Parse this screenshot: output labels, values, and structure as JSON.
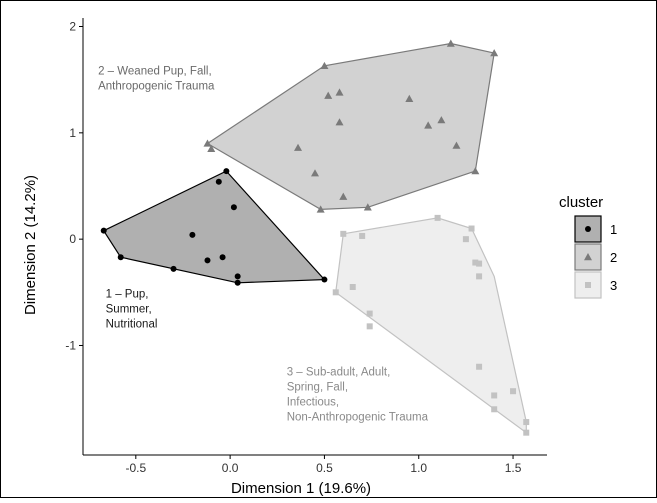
{
  "chart_data": {
    "type": "scatter",
    "xlabel": "Dimension 1 (19.6%)",
    "ylabel": "Dimension 2 (14.2%)",
    "xlim": [
      -0.78,
      1.68
    ],
    "ylim": [
      -2.03,
      2.08
    ],
    "x_ticks": [
      -0.5,
      0.0,
      0.5,
      1.0,
      1.5
    ],
    "x_tick_labels": [
      "-0.5",
      "0.0",
      "0.5",
      "1.0",
      "1.5"
    ],
    "y_ticks": [
      -1,
      0,
      1,
      2
    ],
    "y_tick_labels": [
      "-1",
      "0",
      "1",
      "2"
    ],
    "grid": false,
    "legend": {
      "title": "cluster",
      "position": "right",
      "items": [
        "1",
        "2",
        "3"
      ]
    },
    "series": [
      {
        "name": "1",
        "marker": "circle",
        "color": "#000000",
        "hull_fill": "#b0b0b0",
        "hull_stroke": "#000000",
        "points": [
          [
            -0.67,
            0.08
          ],
          [
            -0.58,
            -0.17
          ],
          [
            -0.3,
            -0.28
          ],
          [
            -0.2,
            0.04
          ],
          [
            -0.12,
            -0.2
          ],
          [
            -0.06,
            0.54
          ],
          [
            -0.04,
            -0.17
          ],
          [
            -0.02,
            0.64
          ],
          [
            0.02,
            0.3
          ],
          [
            0.04,
            -0.35
          ],
          [
            0.04,
            -0.41
          ],
          [
            0.5,
            -0.38
          ]
        ],
        "hull": [
          [
            -0.67,
            0.08
          ],
          [
            -0.02,
            0.64
          ],
          [
            0.5,
            -0.38
          ],
          [
            0.04,
            -0.41
          ],
          [
            -0.58,
            -0.17
          ]
        ]
      },
      {
        "name": "2",
        "marker": "triangle",
        "color": "#7a7a7a",
        "hull_fill": "#d2d2d2",
        "hull_stroke": "#7a7a7a",
        "points": [
          [
            -0.12,
            0.9
          ],
          [
            -0.1,
            0.85
          ],
          [
            0.36,
            0.86
          ],
          [
            0.45,
            0.62
          ],
          [
            0.48,
            0.28
          ],
          [
            0.5,
            1.63
          ],
          [
            0.52,
            1.35
          ],
          [
            0.58,
            1.38
          ],
          [
            0.58,
            1.1
          ],
          [
            0.6,
            0.4
          ],
          [
            0.73,
            0.3
          ],
          [
            0.95,
            1.32
          ],
          [
            1.05,
            1.07
          ],
          [
            1.12,
            1.12
          ],
          [
            1.17,
            1.84
          ],
          [
            1.2,
            0.88
          ],
          [
            1.3,
            0.64
          ],
          [
            1.4,
            1.75
          ]
        ],
        "hull": [
          [
            -0.12,
            0.9
          ],
          [
            0.5,
            1.63
          ],
          [
            1.17,
            1.84
          ],
          [
            1.4,
            1.75
          ],
          [
            1.3,
            0.64
          ],
          [
            0.73,
            0.3
          ],
          [
            0.48,
            0.28
          ]
        ]
      },
      {
        "name": "3",
        "marker": "square",
        "color": "#c2c2c2",
        "hull_fill": "#eeeeee",
        "hull_stroke": "#c2c2c2",
        "points": [
          [
            0.56,
            -0.5
          ],
          [
            0.6,
            0.05
          ],
          [
            0.65,
            -0.45
          ],
          [
            0.7,
            0.03
          ],
          [
            0.74,
            -0.7
          ],
          [
            0.74,
            -0.82
          ],
          [
            1.1,
            0.2
          ],
          [
            1.25,
            0.0
          ],
          [
            1.28,
            0.1
          ],
          [
            1.3,
            -0.22
          ],
          [
            1.32,
            -0.23
          ],
          [
            1.32,
            -0.35
          ],
          [
            1.32,
            -1.2
          ],
          [
            1.4,
            -1.47
          ],
          [
            1.4,
            -1.6
          ],
          [
            1.5,
            -1.43
          ],
          [
            1.57,
            -1.72
          ],
          [
            1.57,
            -1.82
          ]
        ],
        "hull": [
          [
            0.6,
            0.05
          ],
          [
            1.1,
            0.2
          ],
          [
            1.28,
            0.1
          ],
          [
            1.4,
            -0.35
          ],
          [
            1.57,
            -1.72
          ],
          [
            1.57,
            -1.82
          ],
          [
            0.56,
            -0.5
          ]
        ]
      }
    ],
    "annotations": [
      {
        "lines": [
          "2 – Weaned Pup,  Fall,",
          "Anthropogenic Trauma"
        ],
        "x": -0.7,
        "y": 1.55,
        "color": "#6a6a6a"
      },
      {
        "lines": [
          "1 – Pup,",
          "Summer,",
          "Nutritional"
        ],
        "x": -0.66,
        "y": -0.55,
        "color": "#1a1a1a"
      },
      {
        "lines": [
          "3 – Sub-adult,  Adult,",
          "Spring,  Fall,",
          "Infectious,",
          "Non-Anthropogenic  Trauma"
        ],
        "x": 0.3,
        "y": -1.28,
        "color": "#8a8a8a"
      }
    ]
  }
}
